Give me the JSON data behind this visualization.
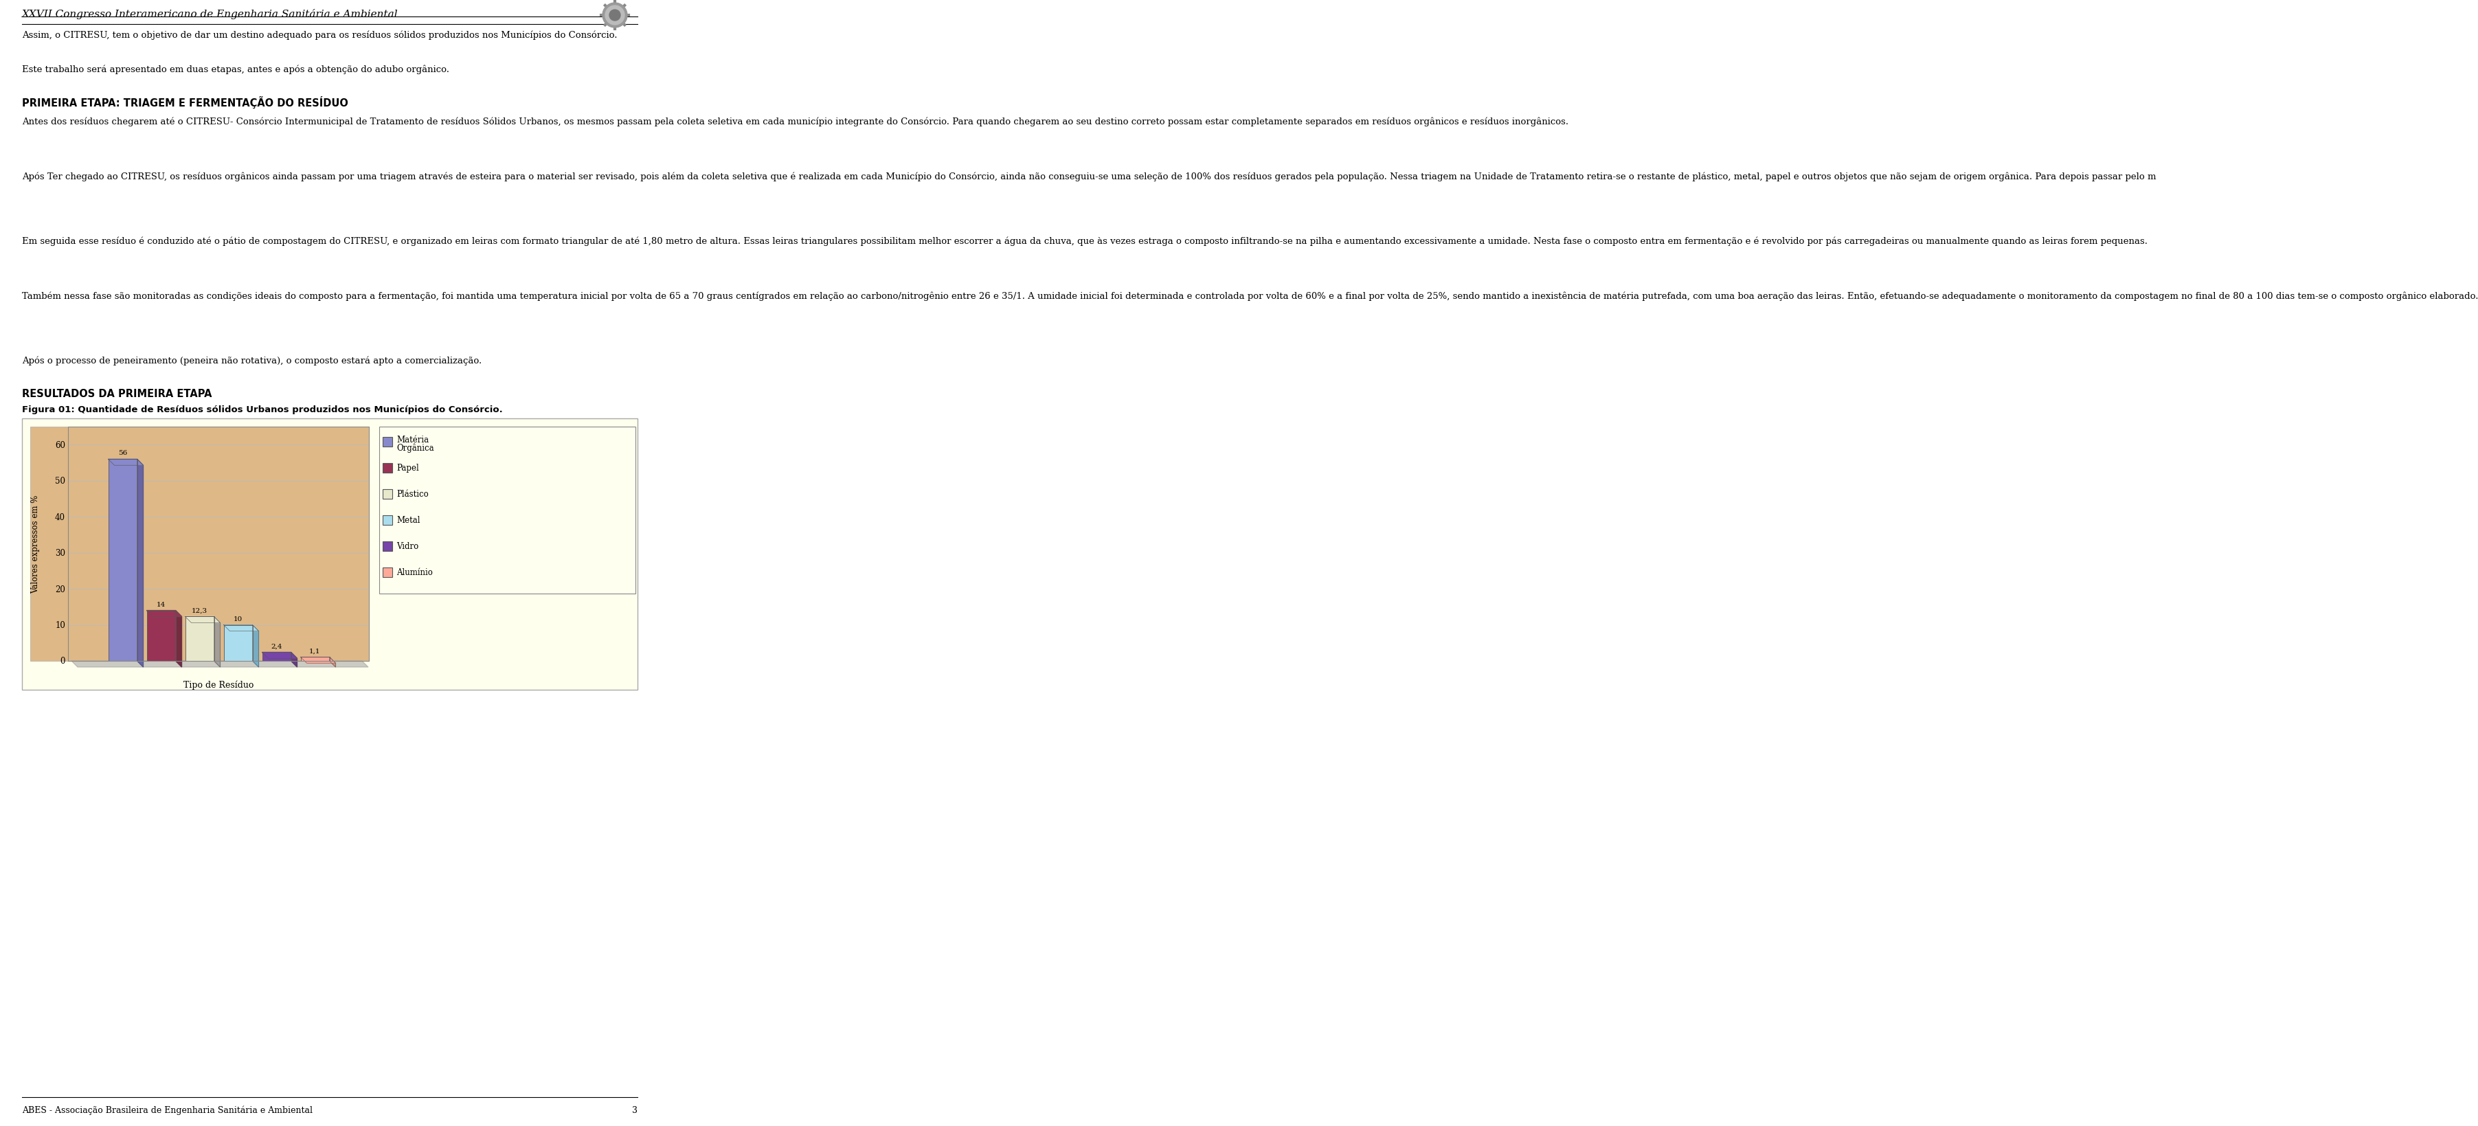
{
  "page_bg": "#ffffff",
  "header_title": "XXVII Congresso Interamericano de Engenharia Sanitária e Ambiental",
  "footer_text": "ABES - Associação Brasileira de Engenharia Sanitária e Ambiental",
  "footer_page": "3",
  "para1": "Assim, o CITRESU, tem o objetivo de dar um destino adequado para os resíduos sólidos produzidos nos Municípios do Consórcio.",
  "para2": "Este trabalho será apresentado em duas etapas, antes e após a obtenção do adubo orgânico.",
  "section1_title": "PRIMEIRA ETAPA: TRIAGEM E FERMENTAÇÃO DO RESÍDUO",
  "section1_p1": "Antes dos resíduos chegarem até o CITRESU- Consórcio Intermunicipal de Tratamento de resíduos Sólidos Urbanos, os mesmos passam pela coleta seletiva em cada município integrante do Consórcio. Para quando chegarem ao seu destino correto possam estar completamente separados em resíduos orgânicos e resíduos inorgânicos.",
  "section1_p2": "Após Ter chegado ao CITRESU, os resíduos orgânicos ainda passam por uma triagem através de esteira para o material ser revisado, pois além da coleta seletiva que é realizada em cada Município do Consórcio, ainda não conseguiu-se uma seleção de 100% dos resíduos gerados pela população. Nessa triagem na Unidade de Tratamento retira-se o restante de plástico, metal, papel e outros objetos que não sejam de origem orgânica. Para depois passar pelo m",
  "section1_p3": "Em seguida esse resíduo é conduzido até o pátio de compostagem do CITRESU, e organizado em leiras com formato triangular de até 1,80 metro de altura. Essas leiras triangulares possibilitam melhor escorrer a água da chuva, que às vezes estraga o composto infiltrando-se na pilha e aumentando excessivamente a umidade. Nesta fase o composto entra em fermentação e é revolvido por pás carregadeiras ou manualmente quando as leiras forem pequenas.",
  "section1_p4": "Também nessa fase são monitoradas as condições ideais do composto para a fermentação, foi mantida uma temperatura inicial por volta de 65 a 70 graus centígrados em relação ao carbono/nitrogênio entre 26 e 35/1. A umidade inicial foi determinada e controlada por volta de 60% e a final por volta de 25%, sendo mantido a inexistência de matéria putrefada, com uma boa aeração das leiras. Então, efetuando-se adequadamente o monitoramento da compostagem no final de 80 a 100 dias tem-se o composto orgânico elaborado.",
  "section1_p5": "Após o processo de peneiramento (peneira não rotativa), o composto estará apto a comercialização.",
  "section2_title": "RESULTADOS DA PRIMEIRA ETAPA",
  "fig_caption": "Figura 01: Quantidade de Resíduos sólidos Urbanos produzidos nos Municípios do Consórcio.",
  "chart_bg": "#f5deb3",
  "chart_plot_bg": "#deb887",
  "chart_xlabel": "Tipo de Resíduo",
  "chart_ylabel": "Valores expressos em %",
  "chart_ylim": [
    0,
    65
  ],
  "chart_yticks": [
    0,
    10,
    20,
    30,
    40,
    50,
    60
  ],
  "bar_values": [
    56,
    14,
    12.3,
    10,
    2.4,
    1.1
  ],
  "bar_colors": [
    "#8888cc",
    "#993355",
    "#e8e8cc",
    "#aaddee",
    "#7744aa",
    "#ffaa99"
  ],
  "bar_edge_colors": [
    "#5555aa",
    "#661133",
    "#999999",
    "#66aacc",
    "#552277",
    "#cc8877"
  ],
  "legend_labels": [
    "Matéria\nOrgânica",
    "Papel",
    "Plástico",
    "Metal",
    "Vidro",
    "Alumínio"
  ],
  "legend_colors": [
    "#8888cc",
    "#993355",
    "#e8e8cc",
    "#aaddee",
    "#7744aa",
    "#ffaa99"
  ],
  "chart_outer_bg": "#ffffee",
  "bar_value_labels": [
    "56",
    "14",
    "12,3",
    "10",
    "2,4",
    "1,1"
  ]
}
